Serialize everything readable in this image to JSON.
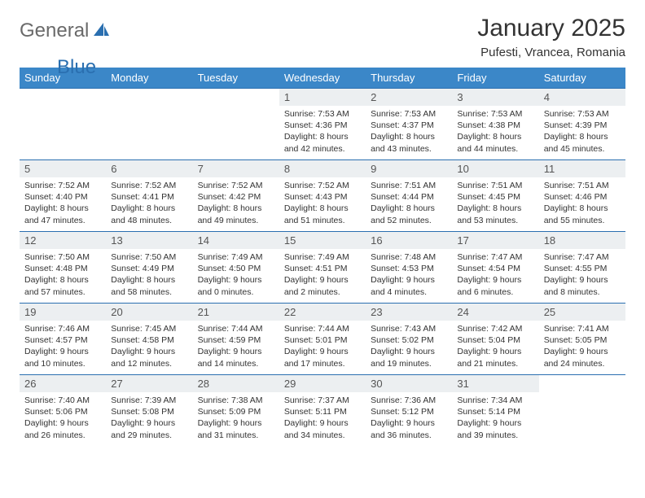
{
  "brand": {
    "part1": "General",
    "part2": "Blue"
  },
  "title": "January 2025",
  "location": "Pufesti, Vrancea, Romania",
  "colors": {
    "header_bg": "#3b87c8",
    "header_text": "#ffffff",
    "daynum_bg": "#eceff1",
    "border": "#2a6fb0",
    "brand_gray": "#6a6a6a",
    "brand_blue": "#2a6fb0"
  },
  "weekdays": [
    "Sunday",
    "Monday",
    "Tuesday",
    "Wednesday",
    "Thursday",
    "Friday",
    "Saturday"
  ],
  "weeks": [
    [
      null,
      null,
      null,
      {
        "n": "1",
        "sr": "7:53 AM",
        "ss": "4:36 PM",
        "dl": "8 hours and 42 minutes."
      },
      {
        "n": "2",
        "sr": "7:53 AM",
        "ss": "4:37 PM",
        "dl": "8 hours and 43 minutes."
      },
      {
        "n": "3",
        "sr": "7:53 AM",
        "ss": "4:38 PM",
        "dl": "8 hours and 44 minutes."
      },
      {
        "n": "4",
        "sr": "7:53 AM",
        "ss": "4:39 PM",
        "dl": "8 hours and 45 minutes."
      }
    ],
    [
      {
        "n": "5",
        "sr": "7:52 AM",
        "ss": "4:40 PM",
        "dl": "8 hours and 47 minutes."
      },
      {
        "n": "6",
        "sr": "7:52 AM",
        "ss": "4:41 PM",
        "dl": "8 hours and 48 minutes."
      },
      {
        "n": "7",
        "sr": "7:52 AM",
        "ss": "4:42 PM",
        "dl": "8 hours and 49 minutes."
      },
      {
        "n": "8",
        "sr": "7:52 AM",
        "ss": "4:43 PM",
        "dl": "8 hours and 51 minutes."
      },
      {
        "n": "9",
        "sr": "7:51 AM",
        "ss": "4:44 PM",
        "dl": "8 hours and 52 minutes."
      },
      {
        "n": "10",
        "sr": "7:51 AM",
        "ss": "4:45 PM",
        "dl": "8 hours and 53 minutes."
      },
      {
        "n": "11",
        "sr": "7:51 AM",
        "ss": "4:46 PM",
        "dl": "8 hours and 55 minutes."
      }
    ],
    [
      {
        "n": "12",
        "sr": "7:50 AM",
        "ss": "4:48 PM",
        "dl": "8 hours and 57 minutes."
      },
      {
        "n": "13",
        "sr": "7:50 AM",
        "ss": "4:49 PM",
        "dl": "8 hours and 58 minutes."
      },
      {
        "n": "14",
        "sr": "7:49 AM",
        "ss": "4:50 PM",
        "dl": "9 hours and 0 minutes."
      },
      {
        "n": "15",
        "sr": "7:49 AM",
        "ss": "4:51 PM",
        "dl": "9 hours and 2 minutes."
      },
      {
        "n": "16",
        "sr": "7:48 AM",
        "ss": "4:53 PM",
        "dl": "9 hours and 4 minutes."
      },
      {
        "n": "17",
        "sr": "7:47 AM",
        "ss": "4:54 PM",
        "dl": "9 hours and 6 minutes."
      },
      {
        "n": "18",
        "sr": "7:47 AM",
        "ss": "4:55 PM",
        "dl": "9 hours and 8 minutes."
      }
    ],
    [
      {
        "n": "19",
        "sr": "7:46 AM",
        "ss": "4:57 PM",
        "dl": "9 hours and 10 minutes."
      },
      {
        "n": "20",
        "sr": "7:45 AM",
        "ss": "4:58 PM",
        "dl": "9 hours and 12 minutes."
      },
      {
        "n": "21",
        "sr": "7:44 AM",
        "ss": "4:59 PM",
        "dl": "9 hours and 14 minutes."
      },
      {
        "n": "22",
        "sr": "7:44 AM",
        "ss": "5:01 PM",
        "dl": "9 hours and 17 minutes."
      },
      {
        "n": "23",
        "sr": "7:43 AM",
        "ss": "5:02 PM",
        "dl": "9 hours and 19 minutes."
      },
      {
        "n": "24",
        "sr": "7:42 AM",
        "ss": "5:04 PM",
        "dl": "9 hours and 21 minutes."
      },
      {
        "n": "25",
        "sr": "7:41 AM",
        "ss": "5:05 PM",
        "dl": "9 hours and 24 minutes."
      }
    ],
    [
      {
        "n": "26",
        "sr": "7:40 AM",
        "ss": "5:06 PM",
        "dl": "9 hours and 26 minutes."
      },
      {
        "n": "27",
        "sr": "7:39 AM",
        "ss": "5:08 PM",
        "dl": "9 hours and 29 minutes."
      },
      {
        "n": "28",
        "sr": "7:38 AM",
        "ss": "5:09 PM",
        "dl": "9 hours and 31 minutes."
      },
      {
        "n": "29",
        "sr": "7:37 AM",
        "ss": "5:11 PM",
        "dl": "9 hours and 34 minutes."
      },
      {
        "n": "30",
        "sr": "7:36 AM",
        "ss": "5:12 PM",
        "dl": "9 hours and 36 minutes."
      },
      {
        "n": "31",
        "sr": "7:34 AM",
        "ss": "5:14 PM",
        "dl": "9 hours and 39 minutes."
      },
      null
    ]
  ],
  "labels": {
    "sunrise": "Sunrise:",
    "sunset": "Sunset:",
    "daylight": "Daylight:"
  }
}
